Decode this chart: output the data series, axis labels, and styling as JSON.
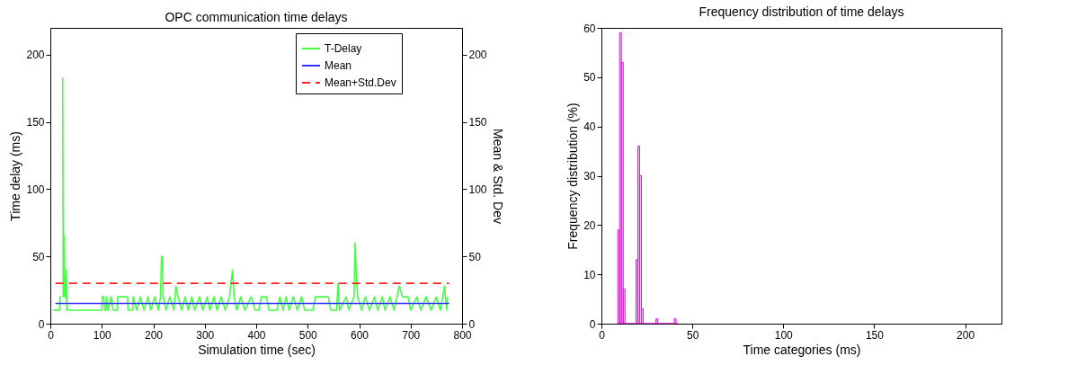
{
  "chart_data": [
    {
      "type": "line",
      "title": "OPC communication time delays",
      "xlabel": "Simulation time (sec)",
      "ylabel": "Time delay (ms)",
      "y2label": "Mean & Std. Dev",
      "xlim": [
        0,
        800
      ],
      "xticks": [
        0,
        100,
        200,
        300,
        400,
        500,
        600,
        700,
        800
      ],
      "ylim": [
        0,
        220
      ],
      "yticks": [
        0,
        50,
        100,
        150,
        200
      ],
      "y2lim": [
        0,
        220
      ],
      "y2ticks": [
        0,
        50,
        100,
        150,
        200
      ],
      "grid": false,
      "legend": "top right",
      "series": [
        {
          "name": "T-Delay",
          "color": "#44ff44",
          "line_style": "solid",
          "x": [
            5,
            18,
            19,
            21,
            22,
            23,
            24,
            25,
            27,
            28,
            30,
            31,
            32,
            100,
            101,
            104,
            105,
            108,
            109,
            112,
            118,
            122,
            130,
            131,
            150,
            151,
            160,
            161,
            168,
            175,
            182,
            190,
            195,
            203,
            210,
            214,
            216,
            218,
            219,
            225,
            232,
            240,
            244,
            248,
            255,
            262,
            268,
            275,
            280,
            290,
            296,
            305,
            310,
            318,
            324,
            332,
            340,
            348,
            354,
            357,
            362,
            370,
            378,
            390,
            398,
            405,
            410,
            420,
            425,
            440,
            446,
            452,
            458,
            464,
            472,
            480,
            488,
            494,
            510,
            515,
            540,
            545,
            556,
            559,
            562,
            575,
            580,
            590,
            592,
            594,
            597,
            605,
            612,
            620,
            630,
            636,
            645,
            650,
            660,
            668,
            678,
            684,
            695,
            700,
            712,
            720,
            730,
            740,
            750,
            758,
            766,
            770,
            772
          ],
          "values": [
            10,
            10,
            20,
            20,
            null,
            null,
            183,
            20,
            66,
            20,
            20,
            40,
            10,
            10,
            20,
            20,
            10,
            10,
            20,
            10,
            20,
            10,
            10,
            20,
            20,
            10,
            10,
            20,
            10,
            20,
            10,
            20,
            10,
            20,
            10,
            20,
            50,
            50,
            20,
            10,
            20,
            10,
            28,
            20,
            10,
            20,
            10,
            20,
            10,
            20,
            10,
            20,
            10,
            20,
            10,
            20,
            10,
            20,
            40,
            20,
            10,
            20,
            10,
            20,
            10,
            10,
            20,
            20,
            10,
            10,
            20,
            10,
            20,
            10,
            20,
            10,
            20,
            10,
            10,
            20,
            20,
            10,
            10,
            30,
            10,
            20,
            10,
            20,
            60,
            40,
            20,
            10,
            20,
            10,
            20,
            10,
            20,
            10,
            20,
            10,
            28,
            20,
            20,
            10,
            20,
            10,
            20,
            10,
            20,
            10,
            28,
            10,
            20
          ]
        },
        {
          "name": "Mean",
          "color": "#3333ff",
          "line_style": "solid",
          "axis": "y2",
          "x": [
            10,
            775
          ],
          "values": [
            15,
            15
          ]
        },
        {
          "name": "Mean+Std.Dev",
          "color": "#ff2222",
          "line_style": "dashed",
          "axis": "y2",
          "x": [
            10,
            775
          ],
          "values": [
            30,
            30
          ]
        }
      ]
    },
    {
      "type": "histogram",
      "title": "Frequency distribution of time delays",
      "xlabel": "Time categories (ms)",
      "ylabel": "Frequency distribution (%)",
      "xlim": [
        0,
        220
      ],
      "xticks": [
        0,
        50,
        100,
        150,
        200
      ],
      "ylim": [
        0,
        60
      ],
      "yticks": [
        0,
        10,
        20,
        30,
        40,
        50,
        60
      ],
      "grid": false,
      "color": "#ff00ff",
      "bins": [
        9,
        10,
        11,
        12,
        13,
        14,
        15,
        16,
        17,
        18,
        19,
        20,
        21,
        22,
        23,
        24,
        25,
        26,
        27,
        28,
        29,
        30,
        31,
        32,
        33,
        34,
        35,
        36,
        37,
        38,
        39,
        40,
        41,
        42
      ],
      "values": [
        19,
        59,
        53,
        7,
        0,
        0,
        0,
        0,
        0,
        0,
        13,
        36,
        30,
        3,
        0,
        0,
        0,
        0,
        0,
        0,
        0,
        1,
        0,
        0,
        0,
        0,
        0,
        0,
        0,
        0,
        0,
        1,
        0
      ]
    }
  ]
}
